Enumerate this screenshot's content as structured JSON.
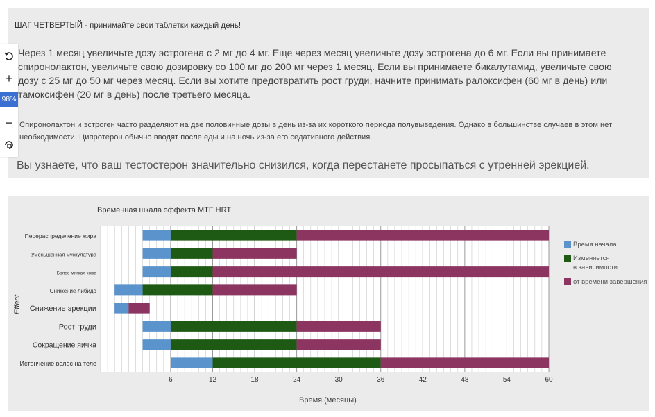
{
  "text": {
    "step_title": "ШАГ ЧЕТВЕРТЫЙ - принимайте свои таблетки каждый день!",
    "main_paragraph": "Через 1 месяц увеличьте дозу эстрогена с 2 мг до 4 мг. Еще через месяц увеличьте дозу эстрогена до 6 мг. Если вы принимаете спиронолактон, увеличьте свою дозировку со 100 мг до 200 мг через 1 месяц. Если вы принимаете бикалутамид, увеличьте свою дозу с 25 мг до 50 мг через месяц. Если вы хотите предотвратить рост груди, начните принимать ралоксифен (60 мг в день) или тамоксифен (20 мг в день) после третьего месяца.",
    "small_paragraph": "Спиронолактон и эстроген часто разделяют на две половинные дозы в день из-за их короткого периода полувыведения. Однако в большинстве случаев в этом нет необходимости. Ципротерон обычно вводят после еды и на ночь из-за его седативного действия.",
    "final_line": "Вы узнаете, что ваш тестостерон значительно снизился, когда перестанете просыпаться с утренней эрекцией."
  },
  "zoom": {
    "level": "98%",
    "rotate_icon": "rotate-icon",
    "plus_icon": "plus-icon",
    "minus_icon": "minus-icon",
    "reset_icon": "reset-icon"
  },
  "chart_data": {
    "type": "bar",
    "orientation": "horizontal-stacked",
    "title": "Временная шкала эффекта MTF HRT",
    "xlabel": "Время (месяцы)",
    "ylabel": "Effect",
    "xlim": [
      -4,
      60
    ],
    "xticks": [
      6,
      12,
      18,
      24,
      30,
      36,
      42,
      48,
      54,
      60
    ],
    "grid": true,
    "legend_position": "right",
    "legend": [
      {
        "label": "Время начала",
        "color": "#5b93cc"
      },
      {
        "label": "Изменяется\nв зависимости",
        "color": "#1f5a14"
      },
      {
        "label": "от времени завершения",
        "color": "#8c3560"
      }
    ],
    "categories": [
      "Перераспределение жира",
      "Уменьшенная мускулатура",
      "Более мягкая кожа",
      "Снижение либидо",
      "Снижение эрекции",
      "Рост груди",
      "Сокращение яичка",
      "Истончение волос на теле"
    ],
    "category_font_sizes": [
      8.5,
      7.5,
      6.5,
      8,
      11,
      11,
      10.5,
      9
    ],
    "segments": [
      [
        [
          2,
          6,
          "#5b93cc"
        ],
        [
          6,
          24,
          "#1f5a14"
        ],
        [
          24,
          60,
          "#8c3560"
        ]
      ],
      [
        [
          2,
          6,
          "#5b93cc"
        ],
        [
          6,
          12,
          "#1f5a14"
        ],
        [
          12,
          24,
          "#8c3560"
        ]
      ],
      [
        [
          2,
          6,
          "#5b93cc"
        ],
        [
          6,
          12,
          "#1f5a14"
        ],
        [
          12,
          60,
          "#8c3560"
        ]
      ],
      [
        [
          -2,
          2,
          "#5b93cc"
        ],
        [
          2,
          12,
          "#1f5a14"
        ],
        [
          12,
          24,
          "#8c3560"
        ]
      ],
      [
        [
          -2,
          0,
          "#5b93cc"
        ],
        [
          0,
          3,
          "#8c3560"
        ]
      ],
      [
        [
          2,
          6,
          "#5b93cc"
        ],
        [
          6,
          24,
          "#1f5a14"
        ],
        [
          24,
          36,
          "#8c3560"
        ]
      ],
      [
        [
          2,
          6,
          "#5b93cc"
        ],
        [
          6,
          24,
          "#1f5a14"
        ],
        [
          24,
          36,
          "#8c3560"
        ]
      ],
      [
        [
          6,
          12,
          "#5b93cc"
        ],
        [
          12,
          36,
          "#1f5a14"
        ],
        [
          36,
          60,
          "#8c3560"
        ]
      ]
    ]
  }
}
